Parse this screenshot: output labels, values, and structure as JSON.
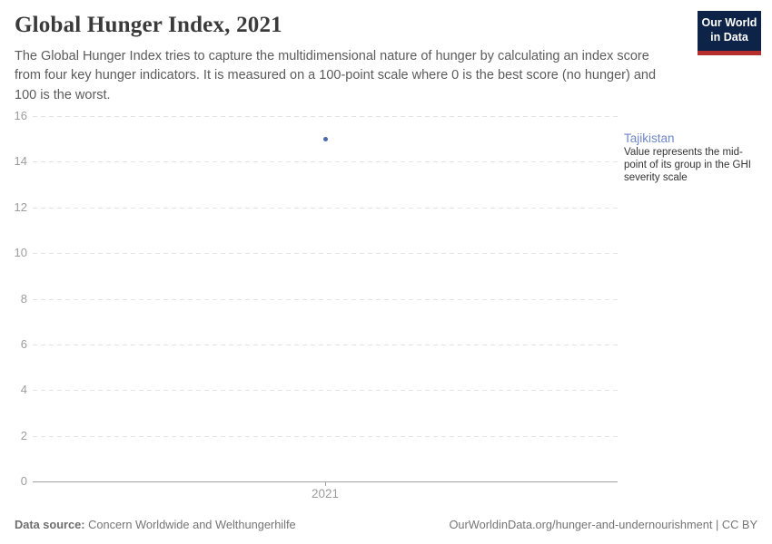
{
  "header": {
    "title": "Global Hunger Index, 2021",
    "subtitle": "The Global Hunger Index tries to capture the multidimensional nature of hunger by calculating an index score from four key hunger indicators. It is measured on a 100-point scale where 0 is the best score (no hunger) and 100 is the worst.",
    "logo": {
      "line1": "Our World",
      "line2": "in Data"
    }
  },
  "chart_data": {
    "type": "scatter",
    "title": "Global Hunger Index, 2021",
    "x": [
      2021
    ],
    "series": [
      {
        "name": "Tajikistan",
        "values": [
          15.0
        ],
        "color": "#4c6ba8"
      }
    ],
    "xlabel": "",
    "ylabel": "",
    "ylim": [
      0,
      16
    ],
    "yticks": [
      0,
      2,
      4,
      6,
      8,
      10,
      12,
      14,
      16
    ],
    "xticks": [
      "2021"
    ],
    "grid": "horizontal-dashed",
    "legend_position": "right-of-plot",
    "annotation": "Value represents the mid-point of its group in the GHI severity scale"
  },
  "entity": {
    "label": "Tajikistan",
    "label_color": "#6e87c8",
    "note": "Value represents the mid-point of its group in the GHI severity scale"
  },
  "footer": {
    "datasource_label": "Data source:",
    "datasource_value": "Concern Worldwide and Welthungerhilfe",
    "link": "OurWorldinData.org/hunger-and-undernourishment | CC BY"
  },
  "colors": {
    "series_blue": "#4c6ba8",
    "entity_label_blue": "#6e87c8",
    "logo_navy": "#0d2448",
    "logo_red": "#b62e2e"
  }
}
